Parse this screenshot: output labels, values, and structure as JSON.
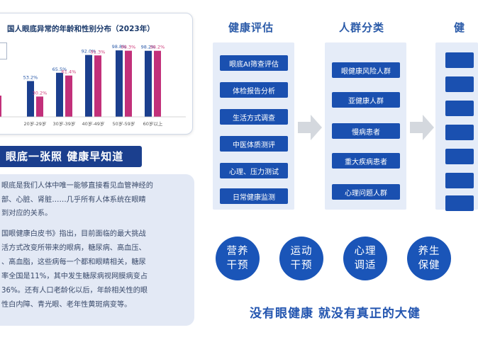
{
  "chart": {
    "title": "国人眼底异常的年龄和性别分布（2023年）"
  },
  "chart_data": {
    "type": "bar",
    "title": "国人眼底异常的年龄和性别分布（2023年）",
    "categories": [
      "20岁-29岁",
      "30岁-39岁",
      "40岁-49岁",
      "50岁-59岁",
      "60岁以上"
    ],
    "series": [
      {
        "values": [
          53.2,
          65.5,
          92.0,
          98.8,
          98.2
        ],
        "labels": [
          "53.2%",
          "65.5%",
          "92.0%",
          "98.8%",
          "98.2%"
        ],
        "color": "#1b3f8e"
      },
      {
        "values": [
          30.2,
          61.4,
          91.3,
          98.3,
          98.2
        ],
        "labels": [
          "30.2%",
          "61.4%",
          "91.3%",
          "98.3%",
          "98.2%"
        ],
        "color": "#c2307a"
      }
    ],
    "ylim": [
      0,
      100
    ],
    "grid": false,
    "colors": {
      "male": "#1b3f8e",
      "female": "#c2307a",
      "label_male": "#2a5aa8",
      "label_female": "#d0407e"
    }
  },
  "slogan": "眼底一张照 健康早知道",
  "paragraphs": [
    "眼底是我们人体中唯一能够直接看见血管神经的",
    "部、心脏、肾脏……几乎所有人体系统在眼睛",
    "到对应的关系。",
    "国眼健康白皮书》指出，目前面临的最大挑战",
    "活方式改变所带来的眼病，糖尿病、高血压、",
    "、高血脂，这些病每一个都和眼睛相关，糖尿",
    "率全国是11%，其中发生糖尿病视网膜病变占",
    "36%。还有人口老龄化以后，年龄相关性的眼",
    "性白内障、青光眼、老年性黄斑病变等。"
  ],
  "columns": [
    {
      "title": "健康评估",
      "items": [
        "眼底AI筛查评估",
        "体检报告分析",
        "生活方式调查",
        "中医体质测评",
        "心理、压力测试",
        "日常健康监测"
      ]
    },
    {
      "title": "人群分类",
      "items": [
        "眼健康风险人群",
        "亚健康人群",
        "慢病患者",
        "重大疾病患者",
        "心理问题人群"
      ]
    },
    {
      "title": "健"
    }
  ],
  "circles": [
    {
      "line1": "营养",
      "line2": "干预"
    },
    {
      "line1": "运动",
      "line2": "干预"
    },
    {
      "line1": "心理",
      "line2": "调适"
    },
    {
      "line1": "养生",
      "line2": "保健"
    }
  ],
  "bottom_slogan": "没有眼健康  就没有真正的大健"
}
